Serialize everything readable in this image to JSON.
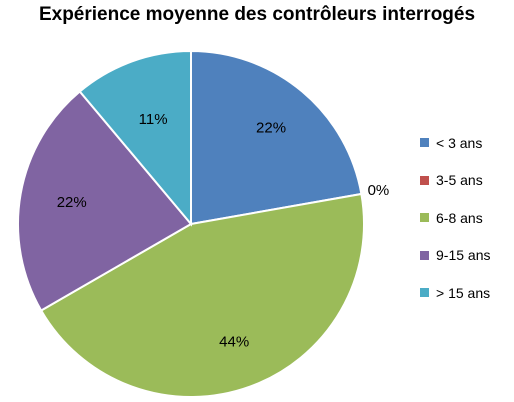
{
  "chart_data": {
    "type": "pie",
    "title": "Expérience moyenne des contrôleurs interrogés",
    "legend_position": "right",
    "start_angle_deg": 0,
    "direction": "clockwise",
    "slices": [
      {
        "name": "< 3 ans",
        "value": 22,
        "label": "22%",
        "color": "#4f81bd"
      },
      {
        "name": "3-5 ans",
        "value": 0,
        "label": "0%",
        "color": "#c0504d"
      },
      {
        "name": "6-8 ans",
        "value": 44,
        "label": "44%",
        "color": "#9bbb59"
      },
      {
        "name": "9-15 ans",
        "value": 22,
        "label": "22%",
        "color": "#8064a2"
      },
      {
        "name": "> 15 ans",
        "value": 11,
        "label": "11%",
        "color": "#4bacc6"
      }
    ]
  }
}
